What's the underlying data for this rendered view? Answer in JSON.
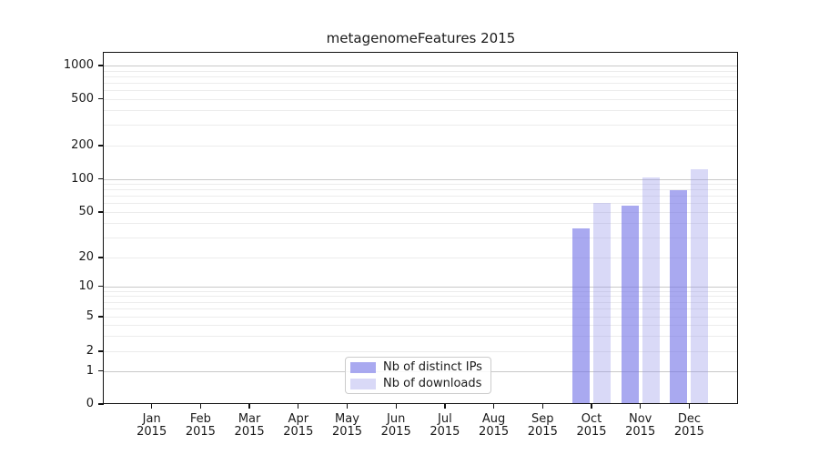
{
  "chart_data": {
    "type": "bar",
    "title": "metagenomeFeatures 2015",
    "categories": [
      "Jan",
      "Feb",
      "Mar",
      "Apr",
      "May",
      "Jun",
      "Jul",
      "Aug",
      "Sep",
      "Oct",
      "Nov",
      "Dec"
    ],
    "year_label": "2015",
    "series": [
      {
        "name": "Nb of distinct IPs",
        "color": "#a9a9f0",
        "values": [
          0,
          0,
          0,
          0,
          0,
          0,
          0,
          0,
          0,
          36,
          57,
          79
        ]
      },
      {
        "name": "Nb of downloads",
        "color": "#d9d9f7",
        "values": [
          0,
          0,
          0,
          0,
          0,
          0,
          0,
          0,
          0,
          61,
          102,
          122
        ]
      }
    ],
    "yticks": [
      0,
      1,
      2,
      5,
      10,
      20,
      50,
      100,
      200,
      500,
      1000
    ],
    "yscale": "log (with 0 baseline)",
    "ylim": [
      0,
      1000
    ],
    "xlabel": "",
    "ylabel": "",
    "grid": true,
    "legend_position": "bottom-center"
  }
}
